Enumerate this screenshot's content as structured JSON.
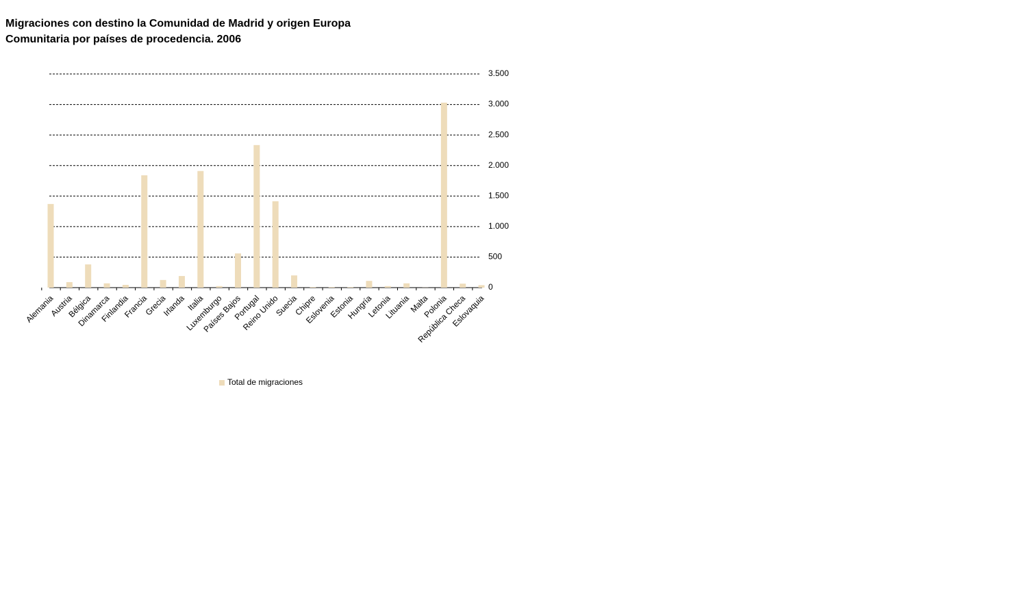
{
  "chart_data": {
    "type": "bar",
    "title": "Migraciones con destino la Comunidad de Madrid y origen  Europa Comunitaria por países de procedencia. 2006",
    "categories": [
      "Alemania",
      "Austria",
      "Bélgica",
      "Dinamarca",
      "Finlandia",
      "Francia",
      "Grecia",
      "Irlanda",
      "Italia",
      "Luxemburgo",
      "Países Bajos",
      "Portugal",
      "Reino Unido",
      "Suecia",
      "Chipre",
      "Eslovenia",
      "Estonia",
      "Hungría",
      "Letonia",
      "Lituania",
      "Malta",
      "Polonia",
      "República Checa",
      "Eslovaquia"
    ],
    "series": [
      {
        "name": "Total de migraciones",
        "color": "#eedcba",
        "values": [
          1370,
          90,
          380,
          70,
          45,
          1840,
          125,
          190,
          1910,
          25,
          560,
          2335,
          1415,
          200,
          10,
          10,
          10,
          110,
          25,
          70,
          2,
          3030,
          65,
          40
        ]
      }
    ],
    "ylim": [
      0,
      3500
    ],
    "yticks": [
      0,
      500,
      {
        "value": 1000,
        "label": "1.000"
      },
      {
        "value": 1500,
        "label": "1.500"
      },
      {
        "value": 2000,
        "label": "2.000"
      },
      {
        "value": 2500,
        "label": "2.500"
      },
      {
        "value": 3000,
        "label": "3.000"
      },
      {
        "value": 3500,
        "label": "3.500"
      }
    ],
    "grid": true
  }
}
